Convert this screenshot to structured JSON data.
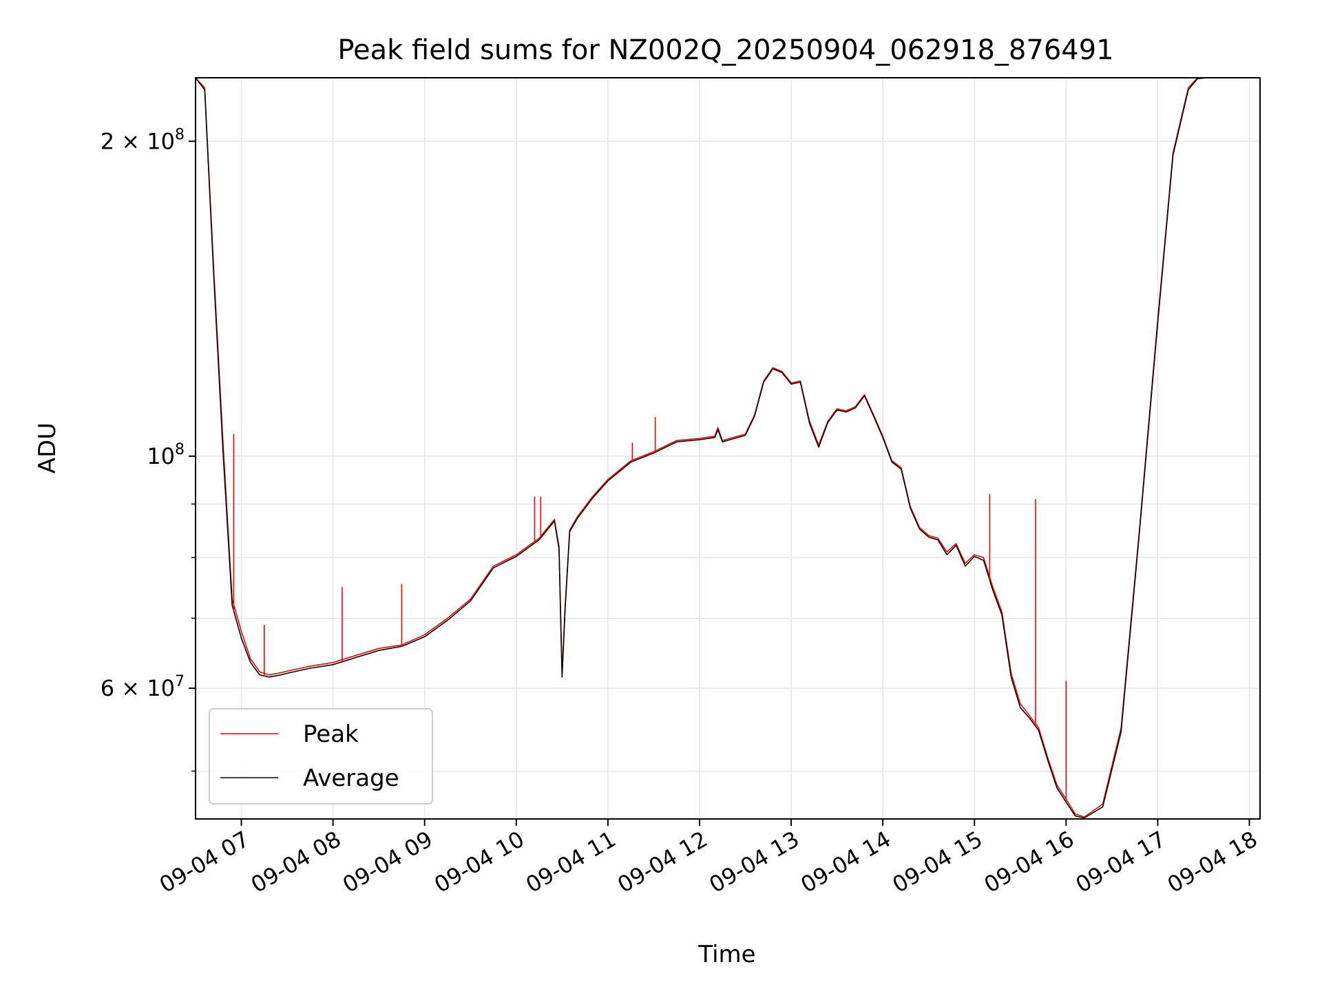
{
  "chart_data": {
    "type": "line",
    "title": "Peak field sums for NZ002Q_20250904_062918_876491",
    "xlabel": "Time",
    "ylabel": "ADU",
    "y_scale": "log",
    "ylim": [
      45000000,
      230000000
    ],
    "xlim": [
      "09-04 06:30",
      "09-04 18:07"
    ],
    "grid": true,
    "legend_position": "lower-left",
    "x_ticks": [
      "09-04 07",
      "09-04 08",
      "09-04 09",
      "09-04 10",
      "09-04 11",
      "09-04 12",
      "09-04 13",
      "09-04 14",
      "09-04 15",
      "09-04 16",
      "09-04 17",
      "09-04 18"
    ],
    "y_tick_labels": [
      {
        "value": 60000000,
        "mantissa": "6",
        "exponent": "7"
      },
      {
        "value": 100000000,
        "mantissa": "",
        "exponent": "8"
      },
      {
        "value": 200000000,
        "mantissa": "2",
        "exponent": "8"
      }
    ],
    "y_minor_ticks": [
      50000000,
      70000000,
      80000000,
      90000000
    ],
    "x": [
      "09-04 06:30",
      "09-04 06:36",
      "09-04 06:42",
      "09-04 06:48",
      "09-04 06:54",
      "09-04 07:00",
      "09-04 07:06",
      "09-04 07:12",
      "09-04 07:18",
      "09-04 07:24",
      "09-04 07:30",
      "09-04 07:45",
      "09-04 08:00",
      "09-04 08:15",
      "09-04 08:30",
      "09-04 08:45",
      "09-04 09:00",
      "09-04 09:15",
      "09-04 09:30",
      "09-04 09:45",
      "09-04 10:00",
      "09-04 10:15",
      "09-04 10:25",
      "09-04 10:28",
      "09-04 10:30",
      "09-04 10:32",
      "09-04 10:35",
      "09-04 10:40",
      "09-04 10:50",
      "09-04 11:00",
      "09-04 11:15",
      "09-04 11:30",
      "09-04 11:45",
      "09-04 12:00",
      "09-04 12:10",
      "09-04 12:12",
      "09-04 12:15",
      "09-04 12:30",
      "09-04 12:36",
      "09-04 12:42",
      "09-04 12:48",
      "09-04 12:54",
      "09-04 13:00",
      "09-04 13:06",
      "09-04 13:12",
      "09-04 13:18",
      "09-04 13:24",
      "09-04 13:30",
      "09-04 13:36",
      "09-04 13:42",
      "09-04 13:48",
      "09-04 13:54",
      "09-04 14:00",
      "09-04 14:06",
      "09-04 14:12",
      "09-04 14:18",
      "09-04 14:24",
      "09-04 14:30",
      "09-04 14:36",
      "09-04 14:42",
      "09-04 14:48",
      "09-04 14:54",
      "09-04 15:00",
      "09-04 15:06",
      "09-04 15:12",
      "09-04 15:18",
      "09-04 15:24",
      "09-04 15:30",
      "09-04 15:36",
      "09-04 15:42",
      "09-04 15:48",
      "09-04 15:54",
      "09-04 16:00",
      "09-04 16:06",
      "09-04 16:12",
      "09-04 16:24",
      "09-04 16:36",
      "09-04 16:48",
      "09-04 17:00",
      "09-04 17:10",
      "09-04 17:20",
      "09-04 17:26",
      "09-04 17:32",
      "09-04 17:38",
      "09-04 17:44",
      "09-04 17:50",
      "09-04 17:54",
      "09-04 17:58",
      "09-04 18:02",
      "09-04 18:07"
    ],
    "series": [
      {
        "name": "Peak",
        "color": "#ff0000",
        "values": [
          230000000,
          225000000,
          150000000,
          103000000,
          73000000,
          68000000,
          64000000,
          62200000,
          61800000,
          62000000,
          62300000,
          63000000,
          63500000,
          64500000,
          65500000,
          66000000,
          67500000,
          70000000,
          73000000,
          78500000,
          80500000,
          83500000,
          87000000,
          82000000,
          62000000,
          72000000,
          85000000,
          87500000,
          91500000,
          95000000,
          99000000,
          101000000,
          103500000,
          104000000,
          104500000,
          106500000,
          103500000,
          105000000,
          109500000,
          118000000,
          121500000,
          120500000,
          117500000,
          118000000,
          108000000,
          102500000,
          108000000,
          111000000,
          110500000,
          111500000,
          114500000,
          109500000,
          104500000,
          99000000,
          97500000,
          89500000,
          85500000,
          84000000,
          83500000,
          81000000,
          82500000,
          79000000,
          80500000,
          80000000,
          75000000,
          71000000,
          62000000,
          58000000,
          56500000,
          55000000,
          51500000,
          48500000,
          47000000,
          45500000,
          45200000,
          46500000,
          55000000,
          85000000,
          135000000,
          195000000,
          225000000,
          230000000,
          230000000,
          230000000,
          230000000,
          230000000,
          230000000,
          230000000,
          230000000,
          230000000
        ]
      },
      {
        "name": "Average",
        "color": "#000000",
        "values": [
          230000000,
          224000000,
          148000000,
          101000000,
          72000000,
          67000000,
          63500000,
          61800000,
          61500000,
          61700000,
          62000000,
          62700000,
          63200000,
          64200000,
          65200000,
          65800000,
          67200000,
          69700000,
          72700000,
          78200000,
          80200000,
          83200000,
          86700000,
          81500000,
          61500000,
          71500000,
          84700000,
          87200000,
          91200000,
          94700000,
          98700000,
          100700000,
          103200000,
          103700000,
          104200000,
          106000000,
          103200000,
          104700000,
          109200000,
          117700000,
          121200000,
          120200000,
          117200000,
          117700000,
          107500000,
          102000000,
          107700000,
          110700000,
          110200000,
          111200000,
          114200000,
          109200000,
          104200000,
          98700000,
          97200000,
          89200000,
          85200000,
          83700000,
          83200000,
          80500000,
          82200000,
          78500000,
          80200000,
          79500000,
          74500000,
          70500000,
          61500000,
          57500000,
          56200000,
          54700000,
          51200000,
          48200000,
          46700000,
          45300000,
          45100000,
          46200000,
          54500000,
          84500000,
          134000000,
          194000000,
          224000000,
          229500000,
          230000000,
          230000000,
          230000000,
          230000000,
          230000000,
          230000000,
          230000000,
          230000000
        ]
      }
    ],
    "spikes": [
      {
        "x": "09-04 06:55",
        "y": 105000000
      },
      {
        "x": "09-04 07:15",
        "y": 69000000
      },
      {
        "x": "09-04 08:06",
        "y": 75000000
      },
      {
        "x": "09-04 08:45",
        "y": 75500000
      },
      {
        "x": "09-04 10:12",
        "y": 91500000
      },
      {
        "x": "09-04 10:16",
        "y": 91500000
      },
      {
        "x": "09-04 11:16",
        "y": 103000000
      },
      {
        "x": "09-04 11:31",
        "y": 109000000
      },
      {
        "x": "09-04 15:10",
        "y": 92000000
      },
      {
        "x": "09-04 15:40",
        "y": 91000000
      },
      {
        "x": "09-04 16:00",
        "y": 61000000
      }
    ]
  }
}
